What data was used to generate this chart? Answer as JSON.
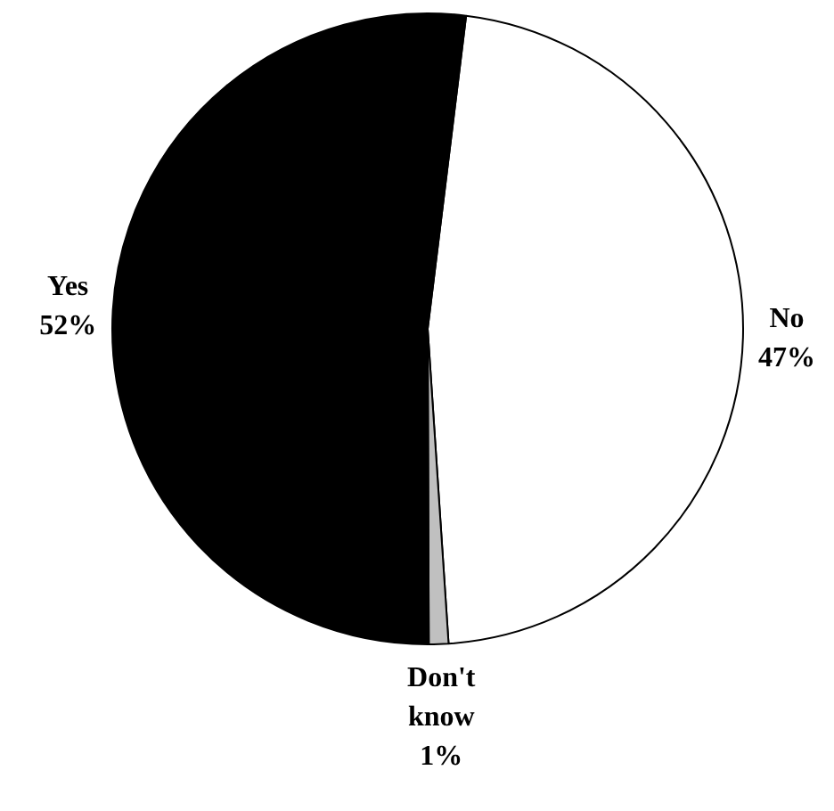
{
  "chart_data": {
    "type": "pie",
    "categories": [
      "No",
      "Don't know",
      "Yes"
    ],
    "values": [
      47,
      1,
      52
    ],
    "colors": [
      "#ffffff",
      "#c0c0c0",
      "#000000"
    ],
    "value_labels": [
      "47%",
      "1%",
      "52%"
    ]
  }
}
